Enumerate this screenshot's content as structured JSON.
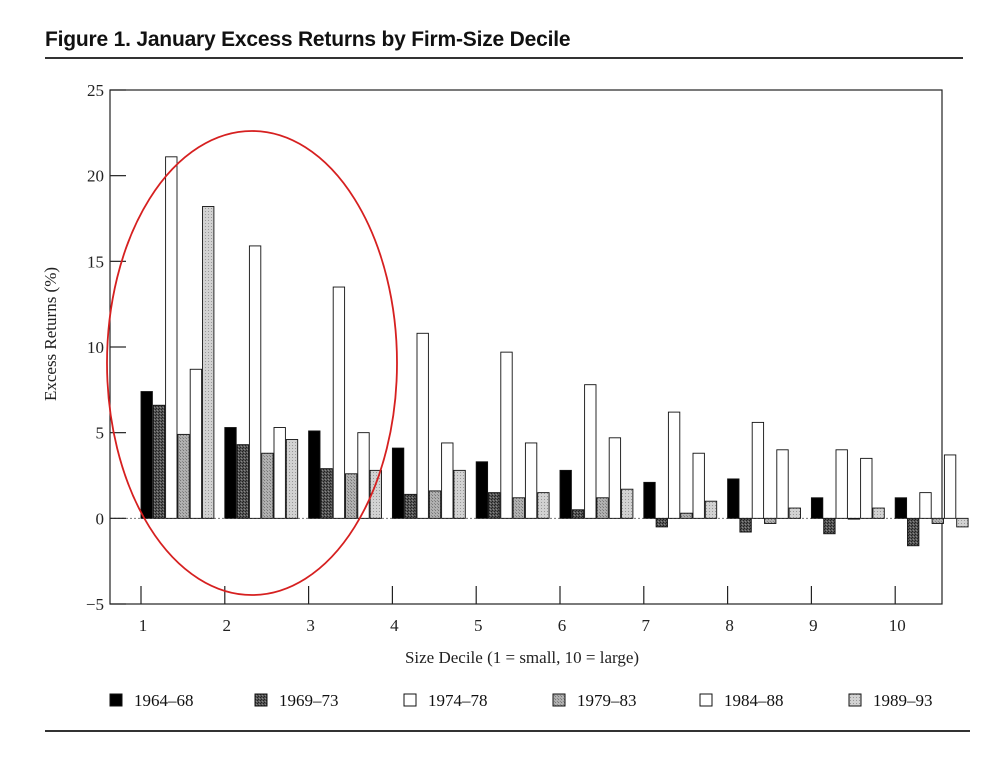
{
  "figure": {
    "title": "Figure 1.  January Excess Returns by Firm-Size Decile"
  },
  "chart_data": {
    "type": "bar",
    "title": "",
    "xlabel": "Size Decile (1 = small, 10 = large)",
    "ylabel": "Excess Returns (%)",
    "ylim": [
      -5,
      25
    ],
    "yticks": [
      "25",
      "20",
      "15",
      "10",
      "5",
      "0",
      "−5"
    ],
    "ytick_values": [
      25,
      20,
      15,
      10,
      5,
      0,
      -5
    ],
    "categories": [
      "1",
      "2",
      "3",
      "4",
      "5",
      "6",
      "7",
      "8",
      "9",
      "10"
    ],
    "legend_position": "bottom",
    "grid": false,
    "series": [
      {
        "name": "1964–68",
        "color": "#000000",
        "pattern": "solid",
        "values": [
          7.4,
          5.3,
          5.1,
          4.1,
          3.3,
          2.8,
          2.1,
          2.3,
          1.2,
          1.2
        ]
      },
      {
        "name": "1969–73",
        "color": "#404040",
        "pattern": "dark",
        "values": [
          6.6,
          4.3,
          2.9,
          1.4,
          1.5,
          0.5,
          -0.5,
          -0.8,
          -0.9,
          -1.6
        ]
      },
      {
        "name": "1974–78",
        "color": "#ffffff",
        "pattern": "white",
        "values": [
          21.1,
          15.9,
          13.5,
          10.8,
          9.7,
          7.8,
          6.2,
          5.6,
          4.0,
          1.5
        ]
      },
      {
        "name": "1979–83",
        "color": "#a8a8a8",
        "pattern": "medium",
        "values": [
          4.9,
          3.8,
          2.6,
          1.6,
          1.2,
          1.2,
          0.3,
          -0.3,
          0.0,
          -0.3
        ]
      },
      {
        "name": "1984–88",
        "color": "#ffffff",
        "pattern": "white",
        "values": [
          8.7,
          5.3,
          5.0,
          4.4,
          4.4,
          4.7,
          3.8,
          4.0,
          3.5,
          3.7
        ]
      },
      {
        "name": "1989–93",
        "color": "#c8c8c8",
        "pattern": "light",
        "values": [
          18.2,
          4.6,
          2.8,
          2.8,
          1.5,
          1.7,
          1.0,
          0.6,
          0.6,
          -0.5
        ]
      }
    ],
    "annotation": {
      "shape": "ellipse",
      "color": "#d62020",
      "covers_categories": [
        "1",
        "2",
        "3"
      ]
    }
  }
}
